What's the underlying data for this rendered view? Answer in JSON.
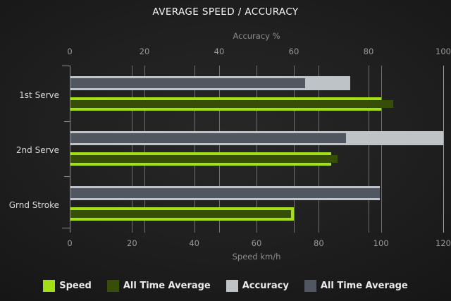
{
  "chart_data": {
    "type": "bar",
    "orientation": "horizontal",
    "style": "dark bullet bars, grid on, legend bottom",
    "title": "AVERAGE SPEED / ACCURACY",
    "categories": [
      "1st Serve",
      "2nd Serve",
      "Grnd Stroke"
    ],
    "axes": {
      "top": {
        "label": "Accuracy %",
        "min": 0,
        "max": 100,
        "ticks": [
          0,
          20,
          40,
          60,
          80,
          100
        ]
      },
      "bottom": {
        "label": "Speed km/h",
        "min": 0,
        "max": 120,
        "ticks": [
          0,
          20,
          40,
          60,
          80,
          100,
          120
        ]
      }
    },
    "series": [
      {
        "name": "Speed",
        "axis": "bottom",
        "role": "primary",
        "color": "#a2df16",
        "values": [
          100,
          84,
          72
        ]
      },
      {
        "name": "All Time Average",
        "axis": "bottom",
        "role": "overlay",
        "color": "#374e07",
        "values": [
          104,
          86,
          71
        ]
      },
      {
        "name": "Accuracy",
        "axis": "top",
        "role": "primary",
        "color": "#bec3c8",
        "values": [
          75,
          100,
          83
        ]
      },
      {
        "name": "All Time Average",
        "axis": "top",
        "role": "overlay",
        "color": "#515760",
        "values": [
          63,
          74,
          83
        ]
      }
    ],
    "legend": {
      "position": "bottom",
      "entries": [
        {
          "label": "Speed",
          "color": "#a2df16"
        },
        {
          "label": "All Time Average",
          "color": "#374e07"
        },
        {
          "label": "Accuracy",
          "color": "#bec3c8"
        },
        {
          "label": "All Time Average",
          "color": "#515760"
        }
      ]
    }
  },
  "colors": {
    "background": "#1e1e1e",
    "grid": "#6e7173",
    "axis": "#8f8f8f",
    "title_text": "#f5f5f5",
    "tick_text": "#9a9a9a",
    "category_text": "#dadada",
    "legend_text": "#eaeaea"
  }
}
